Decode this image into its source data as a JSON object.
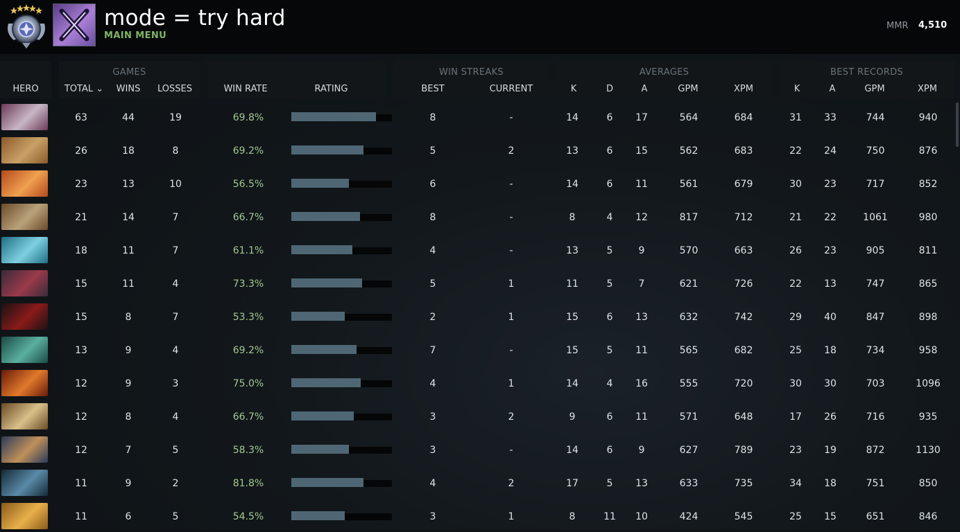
{
  "header": {
    "title": "mode = try hard",
    "subtitle": "MAIN MENU",
    "mmr_label": "MMR",
    "mmr_value": "4,510",
    "rank_icon": "rank-medal-icon",
    "mode_icon": "crossed-swords-icon"
  },
  "colors": {
    "win_rate": "#a3c893",
    "bar_fill": "#4f6774",
    "accent_green": "#7fb468"
  },
  "groups": {
    "games": "GAMES",
    "win_streaks": "WIN STREAKS",
    "averages": "AVERAGES",
    "best_records": "BEST RECORDS"
  },
  "columns": {
    "hero": "HERO",
    "total": "TOTAL ⌄",
    "wins": "WINS",
    "losses": "LOSSES",
    "win_rate": "WIN RATE",
    "rating": "RATING",
    "best": "BEST",
    "current": "CURRENT",
    "avg_k": "K",
    "avg_d": "D",
    "avg_a": "A",
    "avg_gpm": "GPM",
    "avg_xpm": "XPM",
    "rec_k": "K",
    "rec_a": "A",
    "rec_gpm": "GPM",
    "rec_xpm": "XPM"
  },
  "rows": [
    {
      "total": "63",
      "wins": "44",
      "losses": "19",
      "win_rate": "69.8%",
      "rating": 0.84,
      "best": "8",
      "current": "-",
      "k": "14",
      "d": "6",
      "a": "17",
      "gpm": "564",
      "xpm": "684",
      "bk": "31",
      "ba": "33",
      "bgpm": "744",
      "bxpm": "940",
      "c1": "#6b3a5a",
      "c2": "#c8b6c4"
    },
    {
      "total": "26",
      "wins": "18",
      "losses": "8",
      "win_rate": "69.2%",
      "rating": 0.72,
      "best": "5",
      "current": "2",
      "k": "13",
      "d": "6",
      "a": "15",
      "gpm": "562",
      "xpm": "683",
      "bk": "22",
      "ba": "24",
      "bgpm": "750",
      "bxpm": "876",
      "c1": "#8a5a2a",
      "c2": "#c9a066"
    },
    {
      "total": "23",
      "wins": "13",
      "losses": "10",
      "win_rate": "56.5%",
      "rating": 0.57,
      "best": "6",
      "current": "-",
      "k": "14",
      "d": "6",
      "a": "11",
      "gpm": "561",
      "xpm": "679",
      "bk": "30",
      "ba": "23",
      "bgpm": "717",
      "bxpm": "852",
      "c1": "#b34a1c",
      "c2": "#f0a050"
    },
    {
      "total": "21",
      "wins": "14",
      "losses": "7",
      "win_rate": "66.7%",
      "rating": 0.68,
      "best": "8",
      "current": "-",
      "k": "8",
      "d": "4",
      "a": "12",
      "gpm": "817",
      "xpm": "712",
      "bk": "21",
      "ba": "22",
      "bgpm": "1061",
      "bxpm": "980",
      "c1": "#6a4a2a",
      "c2": "#b9a27a"
    },
    {
      "total": "18",
      "wins": "11",
      "losses": "7",
      "win_rate": "61.1%",
      "rating": 0.61,
      "best": "4",
      "current": "-",
      "k": "13",
      "d": "5",
      "a": "9",
      "gpm": "570",
      "xpm": "663",
      "bk": "26",
      "ba": "23",
      "bgpm": "905",
      "bxpm": "811",
      "c1": "#1e6e84",
      "c2": "#7ed0e0"
    },
    {
      "total": "15",
      "wins": "11",
      "losses": "4",
      "win_rate": "73.3%",
      "rating": 0.7,
      "best": "5",
      "current": "1",
      "k": "11",
      "d": "5",
      "a": "7",
      "gpm": "621",
      "xpm": "726",
      "bk": "22",
      "ba": "13",
      "bgpm": "747",
      "bxpm": "865",
      "c1": "#3a2a3a",
      "c2": "#9a3a4a"
    },
    {
      "total": "15",
      "wins": "8",
      "losses": "7",
      "win_rate": "53.3%",
      "rating": 0.53,
      "best": "2",
      "current": "1",
      "k": "15",
      "d": "6",
      "a": "13",
      "gpm": "632",
      "xpm": "742",
      "bk": "29",
      "ba": "40",
      "bgpm": "847",
      "bxpm": "898",
      "c1": "#1a1214",
      "c2": "#8a1a1a"
    },
    {
      "total": "13",
      "wins": "9",
      "losses": "4",
      "win_rate": "69.2%",
      "rating": 0.65,
      "best": "7",
      "current": "-",
      "k": "15",
      "d": "5",
      "a": "11",
      "gpm": "565",
      "xpm": "682",
      "bk": "25",
      "ba": "18",
      "bgpm": "734",
      "bxpm": "958",
      "c1": "#1a4a44",
      "c2": "#5ab0a0"
    },
    {
      "total": "12",
      "wins": "9",
      "losses": "3",
      "win_rate": "75.0%",
      "rating": 0.69,
      "best": "4",
      "current": "1",
      "k": "14",
      "d": "4",
      "a": "16",
      "gpm": "555",
      "xpm": "720",
      "bk": "30",
      "ba": "30",
      "bgpm": "703",
      "bxpm": "1096",
      "c1": "#6a1a0a",
      "c2": "#e07a2a"
    },
    {
      "total": "12",
      "wins": "8",
      "losses": "4",
      "win_rate": "66.7%",
      "rating": 0.62,
      "best": "3",
      "current": "2",
      "k": "9",
      "d": "6",
      "a": "11",
      "gpm": "571",
      "xpm": "648",
      "bk": "17",
      "ba": "26",
      "bgpm": "716",
      "bxpm": "935",
      "c1": "#6a4a24",
      "c2": "#d8c08a"
    },
    {
      "total": "12",
      "wins": "7",
      "losses": "5",
      "win_rate": "58.3%",
      "rating": 0.57,
      "best": "3",
      "current": "-",
      "k": "14",
      "d": "6",
      "a": "9",
      "gpm": "627",
      "xpm": "789",
      "bk": "23",
      "ba": "19",
      "bgpm": "872",
      "bxpm": "1130",
      "c1": "#2a3a5a",
      "c2": "#c0905a"
    },
    {
      "total": "11",
      "wins": "9",
      "losses": "2",
      "win_rate": "81.8%",
      "rating": 0.72,
      "best": "4",
      "current": "2",
      "k": "17",
      "d": "5",
      "a": "13",
      "gpm": "633",
      "xpm": "735",
      "bk": "34",
      "ba": "18",
      "bgpm": "751",
      "bxpm": "850",
      "c1": "#142a38",
      "c2": "#5a8aa8"
    },
    {
      "total": "11",
      "wins": "6",
      "losses": "5",
      "win_rate": "54.5%",
      "rating": 0.53,
      "best": "3",
      "current": "1",
      "k": "8",
      "d": "11",
      "a": "10",
      "gpm": "424",
      "xpm": "545",
      "bk": "25",
      "ba": "15",
      "bgpm": "651",
      "bxpm": "846",
      "c1": "#8a5a1a",
      "c2": "#e8b04a"
    }
  ]
}
